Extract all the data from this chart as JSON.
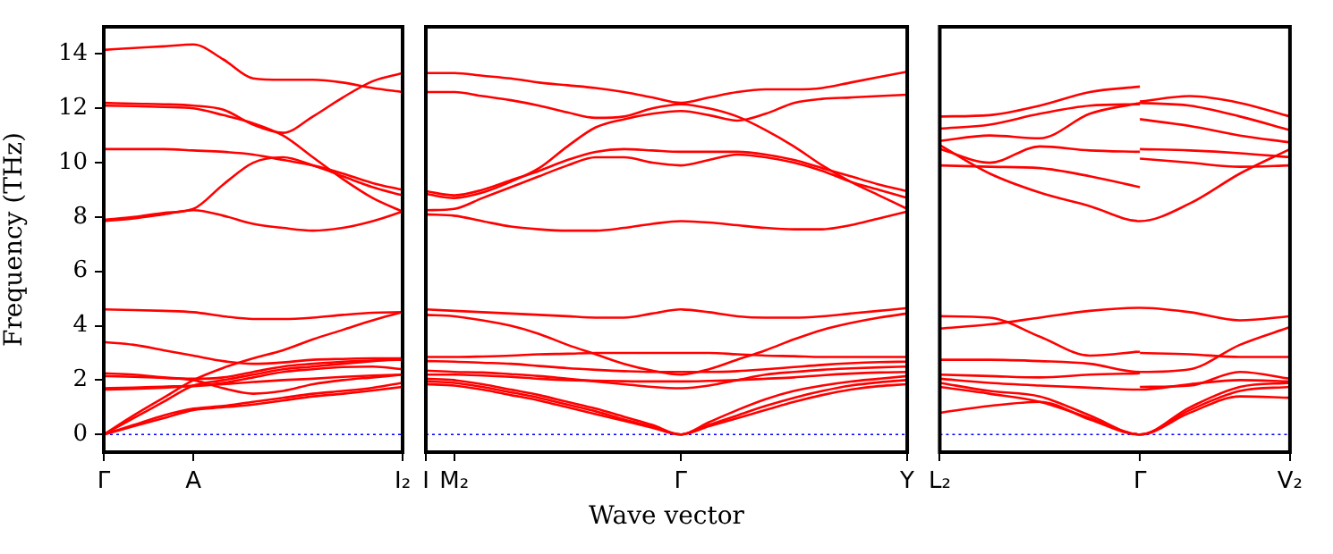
{
  "chart_data": [
    {
      "type": "line",
      "ylabel": "Frequency (THz)",
      "categories": [
        "Γ",
        null,
        null,
        "A",
        null,
        null,
        null,
        null,
        null,
        null,
        "I₂"
      ],
      "ylim": [
        -0.65,
        15
      ],
      "yticks": [
        0,
        2,
        4,
        6,
        8,
        10,
        12,
        14
      ],
      "marker": "none",
      "ref_lines": [
        {
          "axis": "y",
          "value": 0,
          "label": null,
          "color": "#0000ff",
          "line_style": "dotted"
        }
      ],
      "series": [
        {
          "color": "#ff0000",
          "values": [
            14.15,
            14.22,
            14.28,
            14.35,
            13.8,
            13.1,
            13.05,
            13.05,
            12.95,
            12.75,
            12.6
          ]
        },
        {
          "color": "#ff0000",
          "values": [
            12.2,
            12.17,
            12.15,
            12.1,
            11.95,
            11.4,
            11.1,
            11.7,
            12.4,
            13.0,
            13.3
          ]
        },
        {
          "color": "#ff0000",
          "values": [
            12.1,
            12.08,
            12.05,
            12.0,
            11.75,
            11.45,
            11.0,
            10.2,
            9.4,
            8.7,
            8.2
          ]
        },
        {
          "color": "#ff0000",
          "values": [
            10.5,
            10.5,
            10.5,
            10.45,
            10.4,
            10.3,
            10.1,
            9.9,
            9.6,
            9.25,
            9.0
          ]
        },
        {
          "color": "#ff0000",
          "values": [
            7.9,
            8.0,
            8.15,
            8.3,
            9.2,
            10.0,
            10.2,
            9.9,
            9.5,
            9.1,
            8.8
          ]
        },
        {
          "color": "#ff0000",
          "values": [
            7.85,
            7.95,
            8.1,
            8.25,
            8.05,
            7.75,
            7.6,
            7.5,
            7.6,
            7.85,
            8.2
          ]
        },
        {
          "color": "#ff0000",
          "values": [
            4.6,
            4.58,
            4.55,
            4.5,
            4.35,
            4.25,
            4.25,
            4.3,
            4.4,
            4.48,
            4.5
          ]
        },
        {
          "color": "#ff0000",
          "values": [
            3.4,
            3.3,
            3.1,
            2.9,
            2.7,
            2.6,
            2.65,
            2.75,
            2.78,
            2.8,
            2.8
          ]
        },
        {
          "color": "#ff0000",
          "values": [
            0,
            0.7,
            1.35,
            2.0,
            2.45,
            2.8,
            3.1,
            3.5,
            3.85,
            4.2,
            4.5
          ]
        },
        {
          "color": "#ff0000",
          "values": [
            2.15,
            2.12,
            2.08,
            2.0,
            1.7,
            1.5,
            1.6,
            1.85,
            2.0,
            2.1,
            2.2
          ]
        },
        {
          "color": "#ff0000",
          "values": [
            2.25,
            2.2,
            2.1,
            2.05,
            2.1,
            2.3,
            2.5,
            2.6,
            2.68,
            2.72,
            2.75
          ]
        },
        {
          "color": "#ff0000",
          "values": [
            1.7,
            1.72,
            1.76,
            1.8,
            1.9,
            2.1,
            2.3,
            2.4,
            2.48,
            2.5,
            2.4
          ]
        },
        {
          "color": "#ff0000",
          "values": [
            1.65,
            1.68,
            1.72,
            1.78,
            1.85,
            1.93,
            2.0,
            2.05,
            2.12,
            2.17,
            2.2
          ]
        },
        {
          "color": "#ff0000",
          "values": [
            0,
            0.35,
            0.7,
            0.95,
            1.05,
            1.2,
            1.35,
            1.5,
            1.6,
            1.72,
            1.9
          ]
        },
        {
          "color": "#ff0000",
          "values": [
            0,
            0.3,
            0.6,
            0.9,
            1.0,
            1.1,
            1.25,
            1.4,
            1.5,
            1.62,
            1.75
          ]
        },
        {
          "color": "#ff0000",
          "values": [
            0,
            0.6,
            1.2,
            1.8,
            2.0,
            2.2,
            2.4,
            2.5,
            2.6,
            2.7,
            2.8
          ]
        }
      ]
    },
    {
      "type": "line",
      "xlabel": "Wave vector",
      "categories": [
        "I",
        "M₂",
        null,
        null,
        null,
        null,
        null,
        null,
        null,
        "Γ",
        null,
        null,
        null,
        null,
        null,
        null,
        null,
        "Y"
      ],
      "ylim": [
        -0.65,
        15
      ],
      "tick_labels": "x",
      "marker": "none",
      "ref_lines": [
        {
          "axis": "y",
          "value": 0,
          "label": null,
          "color": "#0000ff",
          "line_style": "dotted"
        }
      ],
      "series": [
        {
          "color": "#ff0000",
          "values": [
            13.3,
            13.3,
            13.2,
            13.1,
            12.95,
            12.85,
            12.75,
            12.6,
            12.4,
            12.2,
            12.4,
            12.6,
            12.7,
            12.7,
            12.75,
            12.95,
            13.15,
            13.35
          ]
        },
        {
          "color": "#ff0000",
          "values": [
            12.6,
            12.6,
            12.45,
            12.3,
            12.1,
            11.85,
            11.65,
            11.7,
            12.0,
            12.15,
            12.0,
            11.7,
            11.2,
            10.6,
            9.9,
            9.3,
            8.8,
            8.3
          ]
        },
        {
          "color": "#ff0000",
          "values": [
            8.85,
            8.7,
            8.9,
            9.3,
            9.8,
            10.6,
            11.3,
            11.6,
            11.8,
            11.9,
            11.75,
            11.55,
            11.8,
            12.2,
            12.35,
            12.4,
            12.45,
            12.5
          ]
        },
        {
          "color": "#ff0000",
          "values": [
            8.95,
            8.8,
            9.0,
            9.35,
            9.7,
            10.1,
            10.4,
            10.5,
            10.45,
            10.4,
            10.4,
            10.4,
            10.3,
            10.1,
            9.8,
            9.5,
            9.2,
            8.95
          ]
        },
        {
          "color": "#ff0000",
          "values": [
            8.25,
            8.3,
            8.7,
            9.1,
            9.5,
            9.9,
            10.2,
            10.2,
            10.0,
            9.9,
            10.1,
            10.3,
            10.2,
            10.0,
            9.7,
            9.3,
            9.0,
            8.7
          ]
        },
        {
          "color": "#ff0000",
          "values": [
            8.1,
            8.05,
            7.85,
            7.65,
            7.55,
            7.5,
            7.5,
            7.6,
            7.75,
            7.85,
            7.8,
            7.7,
            7.6,
            7.55,
            7.55,
            7.7,
            7.95,
            8.2
          ]
        },
        {
          "color": "#ff0000",
          "values": [
            4.6,
            4.55,
            4.5,
            4.45,
            4.4,
            4.35,
            4.3,
            4.3,
            4.45,
            4.6,
            4.5,
            4.35,
            4.3,
            4.3,
            4.35,
            4.45,
            4.55,
            4.65
          ]
        },
        {
          "color": "#ff0000",
          "values": [
            4.4,
            4.35,
            4.2,
            4.0,
            3.7,
            3.3,
            2.95,
            2.6,
            2.35,
            2.2,
            2.4,
            2.75,
            3.1,
            3.5,
            3.85,
            4.1,
            4.3,
            4.45
          ]
        },
        {
          "color": "#ff0000",
          "values": [
            2.85,
            2.85,
            2.87,
            2.9,
            2.95,
            2.97,
            3.0,
            3.0,
            3.0,
            3.0,
            3.0,
            2.95,
            2.9,
            2.88,
            2.85,
            2.85,
            2.85,
            2.85
          ]
        },
        {
          "color": "#ff0000",
          "values": [
            2.7,
            2.68,
            2.64,
            2.6,
            2.52,
            2.44,
            2.38,
            2.33,
            2.3,
            2.3,
            2.3,
            2.33,
            2.4,
            2.48,
            2.56,
            2.62,
            2.66,
            2.68
          ]
        },
        {
          "color": "#ff0000",
          "values": [
            2.35,
            2.3,
            2.28,
            2.22,
            2.15,
            2.05,
            1.95,
            1.85,
            1.75,
            1.7,
            1.8,
            2.0,
            2.2,
            2.3,
            2.38,
            2.43,
            2.47,
            2.5
          ]
        },
        {
          "color": "#ff0000",
          "values": [
            2.2,
            2.2,
            2.17,
            2.12,
            2.05,
            2.0,
            1.98,
            1.96,
            1.95,
            1.95,
            1.97,
            2.0,
            2.05,
            2.1,
            2.18,
            2.24,
            2.28,
            2.3
          ]
        },
        {
          "color": "#ff0000",
          "values": [
            2.05,
            2.0,
            1.85,
            1.65,
            1.45,
            1.2,
            0.95,
            0.65,
            0.35,
            0,
            0.45,
            0.9,
            1.3,
            1.6,
            1.8,
            1.95,
            2.05,
            2.15
          ]
        },
        {
          "color": "#ff0000",
          "values": [
            1.95,
            1.9,
            1.75,
            1.55,
            1.35,
            1.1,
            0.85,
            0.55,
            0.28,
            0,
            0.35,
            0.7,
            1.05,
            1.35,
            1.6,
            1.8,
            1.92,
            2.0
          ]
        },
        {
          "color": "#ff0000",
          "values": [
            1.85,
            1.8,
            1.65,
            1.45,
            1.25,
            1.0,
            0.75,
            0.5,
            0.25,
            0,
            0.3,
            0.6,
            0.9,
            1.2,
            1.45,
            1.65,
            1.78,
            1.85
          ]
        }
      ]
    },
    {
      "type": "line",
      "categories": [
        "L₂",
        null,
        null,
        null,
        "Γ",
        null,
        null,
        "V₂"
      ],
      "ylim": [
        -0.65,
        15
      ],
      "tick_labels": "x",
      "marker": "none",
      "ref_lines": [
        {
          "axis": "y",
          "value": 0,
          "label": null,
          "color": "#0000ff",
          "line_style": "dotted"
        }
      ],
      "series": [
        {
          "color": "#ff0000",
          "values": [
            11.7,
            11.75,
            12.1,
            12.6,
            12.8,
            null,
            null,
            null
          ]
        },
        {
          "color": "#ff0000",
          "values": [
            11.25,
            11.4,
            11.8,
            12.1,
            12.15,
            null,
            null,
            null
          ]
        },
        {
          "color": "#ff0000",
          "values": [
            10.8,
            11.0,
            10.9,
            11.8,
            12.2,
            null,
            null,
            null
          ]
        },
        {
          "color": "#ff0000",
          "values": [
            10.5,
            10.0,
            10.6,
            10.45,
            10.4,
            null,
            null,
            null
          ]
        },
        {
          "color": "#ff0000",
          "values": [
            10.65,
            9.6,
            8.9,
            8.4,
            7.85,
            8.5,
            9.6,
            10.5
          ]
        },
        {
          "color": "#ff0000",
          "values": [
            9.9,
            9.85,
            9.8,
            9.5,
            9.1,
            null,
            null,
            null
          ]
        },
        {
          "color": "#ff0000",
          "values": [
            null,
            null,
            null,
            null,
            12.25,
            12.45,
            12.2,
            11.7
          ]
        },
        {
          "color": "#ff0000",
          "values": [
            null,
            null,
            null,
            null,
            12.2,
            12.1,
            11.7,
            11.2
          ]
        },
        {
          "color": "#ff0000",
          "values": [
            null,
            null,
            null,
            null,
            11.6,
            11.35,
            11.0,
            10.75
          ]
        },
        {
          "color": "#ff0000",
          "values": [
            null,
            null,
            null,
            null,
            10.5,
            10.45,
            10.35,
            10.2
          ]
        },
        {
          "color": "#ff0000",
          "values": [
            null,
            null,
            null,
            null,
            10.15,
            10.0,
            9.85,
            9.9
          ]
        },
        {
          "color": "#ff0000",
          "values": [
            4.35,
            4.3,
            3.6,
            2.9,
            3.05,
            null,
            null,
            null
          ]
        },
        {
          "color": "#ff0000",
          "values": [
            null,
            null,
            null,
            null,
            3.0,
            2.95,
            2.85,
            2.85
          ]
        },
        {
          "color": "#ff0000",
          "values": [
            3.9,
            4.05,
            4.3,
            4.55,
            4.66,
            4.5,
            4.2,
            4.35
          ]
        },
        {
          "color": "#ff0000",
          "values": [
            2.75,
            2.75,
            2.7,
            2.6,
            2.3,
            2.4,
            3.3,
            3.95
          ]
        },
        {
          "color": "#ff0000",
          "values": [
            2.2,
            2.15,
            2.1,
            2.2,
            2.25,
            null,
            null,
            null
          ]
        },
        {
          "color": "#ff0000",
          "values": [
            null,
            null,
            null,
            null,
            1.75,
            1.8,
            2.3,
            2.05
          ]
        },
        {
          "color": "#ff0000",
          "values": [
            2.05,
            1.9,
            1.8,
            1.72,
            1.65,
            1.85,
            2.0,
            1.95
          ]
        },
        {
          "color": "#ff0000",
          "values": [
            1.9,
            1.6,
            1.4,
            0.7,
            0,
            1.0,
            1.75,
            1.9
          ]
        },
        {
          "color": "#ff0000",
          "values": [
            1.75,
            1.5,
            1.2,
            0.6,
            0,
            0.9,
            1.6,
            1.75
          ]
        },
        {
          "color": "#ff0000",
          "values": [
            0.8,
            1.05,
            1.2,
            0.55,
            0,
            0.8,
            1.4,
            1.35
          ]
        }
      ]
    }
  ]
}
